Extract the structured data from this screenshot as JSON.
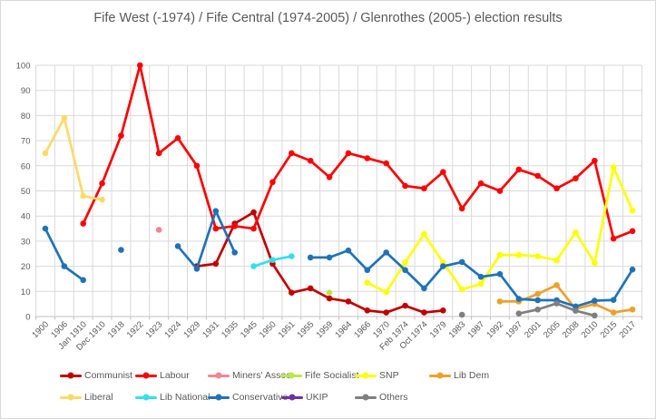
{
  "chart_data": {
    "type": "line",
    "title": "Fife West (-1974) / Fife Central (1974-2005) / Glenrothes (2005-) election results",
    "xlabel": "",
    "ylabel": "",
    "ylim": [
      0,
      100
    ],
    "y_ticks": [
      0,
      10,
      20,
      30,
      40,
      50,
      60,
      70,
      80,
      90,
      100
    ],
    "grid": true,
    "legend_position": "bottom",
    "categories": [
      "1900",
      "1906",
      "Jan 1910",
      "Dec 1910",
      "1918",
      "1922",
      "1923",
      "1924",
      "1929",
      "1931",
      "1935",
      "1945",
      "1950",
      "1951",
      "1955",
      "1959",
      "1964",
      "1966",
      "1970",
      "Feb 1974",
      "Oct 1974",
      "1979",
      "1983",
      "1987",
      "1992",
      "1997",
      "2001",
      "2005",
      "2008",
      "2010",
      "2015",
      "2017"
    ],
    "series": [
      {
        "name": "Communist",
        "color": "#C00000",
        "values": [
          null,
          null,
          null,
          null,
          null,
          null,
          null,
          null,
          20,
          21,
          37,
          41.5,
          21,
          9.5,
          11.2,
          7.2,
          6,
          2.4,
          1.6,
          4.3,
          1.6,
          2.4,
          null,
          null,
          null,
          null,
          null,
          null,
          null,
          null,
          null,
          null
        ]
      },
      {
        "name": "Labour",
        "color": "#FF0000",
        "values": [
          null,
          null,
          37,
          53,
          72,
          100,
          65,
          71,
          60,
          35,
          36,
          35,
          53.5,
          65,
          62,
          55.5,
          65,
          63,
          61,
          52,
          51,
          57.5,
          43,
          53,
          50,
          58.5,
          56,
          51,
          55,
          62,
          31,
          34
        ]
      },
      {
        "name": "Miners' Assoc",
        "color": "#F0878F",
        "values": [
          null,
          null,
          null,
          null,
          null,
          null,
          34.5,
          null,
          null,
          null,
          null,
          null,
          null,
          null,
          null,
          null,
          null,
          null,
          null,
          null,
          null,
          null,
          null,
          null,
          null,
          null,
          null,
          null,
          null,
          null,
          null,
          null
        ]
      },
      {
        "name": "Fife Socialist",
        "color": "#BFE549",
        "values": [
          null,
          null,
          null,
          null,
          null,
          null,
          null,
          null,
          null,
          null,
          null,
          null,
          null,
          null,
          null,
          9.5,
          null,
          null,
          null,
          null,
          null,
          null,
          null,
          null,
          null,
          null,
          null,
          null,
          null,
          null,
          null,
          null
        ]
      },
      {
        "name": "SNP",
        "color": "#FFFF00",
        "values": [
          null,
          null,
          null,
          null,
          null,
          null,
          null,
          null,
          null,
          null,
          null,
          null,
          null,
          null,
          null,
          null,
          null,
          13.5,
          9.7,
          21.5,
          32.8,
          21.5,
          10.8,
          13,
          24.5,
          24.5,
          24,
          22.4,
          33.5,
          21.3,
          59.4,
          42.2
        ]
      },
      {
        "name": "Lib Dem",
        "color": "#EBA12A",
        "values": [
          null,
          null,
          null,
          null,
          null,
          null,
          null,
          null,
          null,
          null,
          null,
          null,
          null,
          null,
          null,
          null,
          null,
          null,
          null,
          null,
          null,
          null,
          null,
          null,
          6,
          6,
          9,
          12.5,
          3,
          5,
          1.6,
          2.8
        ]
      },
      {
        "name": "Liberal",
        "color": "#FFD966",
        "values": [
          65,
          79,
          48,
          46.5,
          null,
          null,
          null,
          null,
          null,
          null,
          null,
          null,
          null,
          null,
          null,
          null,
          null,
          null,
          null,
          null,
          null,
          null,
          null,
          null,
          null,
          null,
          null,
          null,
          null,
          null,
          null,
          null
        ]
      },
      {
        "name": "Lib National",
        "color": "#33DFEF",
        "values": [
          null,
          null,
          null,
          null,
          null,
          null,
          null,
          null,
          null,
          null,
          null,
          20,
          22.5,
          24,
          null,
          null,
          null,
          null,
          null,
          null,
          null,
          null,
          null,
          null,
          null,
          null,
          null,
          null,
          null,
          null,
          null,
          null
        ]
      },
      {
        "name": "Conservative",
        "color": "#1F72B8",
        "values": [
          35,
          20,
          14.5,
          null,
          26.5,
          null,
          null,
          28,
          19,
          42,
          25.5,
          null,
          null,
          null,
          23.5,
          23.5,
          26.3,
          18.5,
          25.5,
          18.5,
          11.2,
          20,
          21.7,
          15.8,
          16.9,
          7,
          6.5,
          6.5,
          4,
          6.3,
          6.6,
          18.7
        ]
      },
      {
        "name": "UKIP",
        "color": "#7030A0",
        "values": [
          null,
          null,
          null,
          null,
          null,
          null,
          null,
          null,
          null,
          null,
          null,
          null,
          null,
          null,
          null,
          null,
          null,
          null,
          null,
          null,
          null,
          null,
          null,
          null,
          null,
          null,
          null,
          null,
          null,
          null,
          null,
          null
        ]
      },
      {
        "name": "Others",
        "color": "#7F7F7F",
        "values": [
          null,
          null,
          null,
          null,
          null,
          null,
          null,
          null,
          null,
          null,
          null,
          null,
          null,
          null,
          null,
          null,
          null,
          null,
          null,
          null,
          null,
          null,
          0.7,
          null,
          null,
          1.2,
          2.8,
          5.2,
          2.3,
          0.4,
          null,
          null
        ]
      }
    ]
  },
  "style": {
    "grid_color": "#d9d9d9",
    "axis_color": "#bfbfbf",
    "text_color": "#595959"
  }
}
